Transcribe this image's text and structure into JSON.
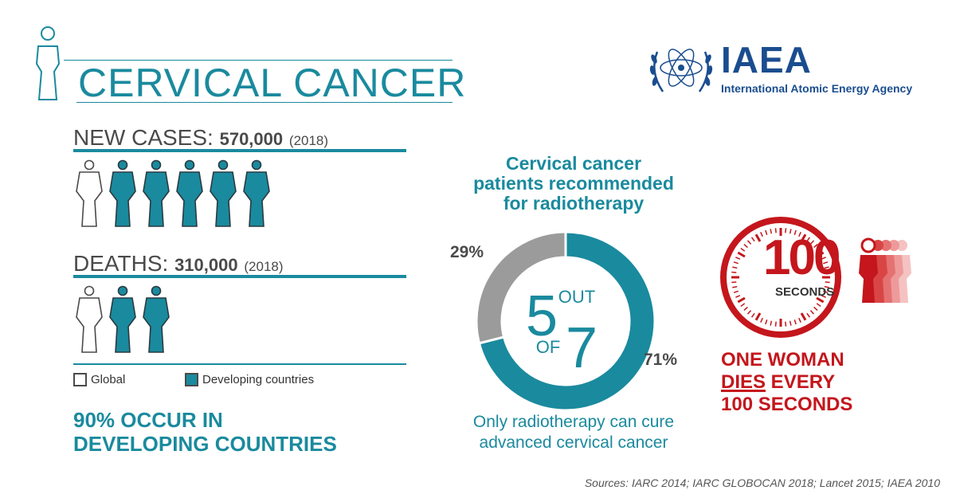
{
  "title": "CERVICAL CANCER",
  "logo": {
    "name": "IAEA",
    "subtitle": "International Atomic Energy Agency"
  },
  "new_cases": {
    "label": "NEW CASES:",
    "value": "570,000",
    "year": "(2018)",
    "global_icons": 1,
    "developing_icons": 5
  },
  "deaths": {
    "label": "DEATHS:",
    "value": "310,000",
    "year": "(2018)",
    "global_icons": 1,
    "developing_icons": 2
  },
  "legend": {
    "global": "Global",
    "developing": "Developing countries"
  },
  "highlight": {
    "line1": "90% OCCUR IN",
    "line2": "DEVELOPING COUNTRIES"
  },
  "donut": {
    "title_line1": "Cervical cancer",
    "title_line2": "patients recommended",
    "title_line3": "for radiotherapy",
    "big_num": "5",
    "out": "OUT",
    "of": "OF",
    "total": "7",
    "pct_gray": "29%",
    "pct_teal": "71%",
    "caption_line1": "Only radiotherapy can cure",
    "caption_line2": "advanced cervical cancer"
  },
  "clock": {
    "number": "100",
    "unit": "SECONDS"
  },
  "dies": {
    "line1": "ONE WOMAN",
    "dies_word": "DIES",
    "every": " EVERY",
    "line3": "100 SECONDS"
  },
  "sources": "Sources: IARC 2014; IARC GLOBOCAN 2018; Lancet 2015; IAEA 2010",
  "colors": {
    "teal": "#1a8a9e",
    "gray": "#9b9b9b",
    "red": "#c4161c",
    "navy": "#1a4d8f"
  },
  "chart_data": {
    "type": "pie",
    "categories": [
      "recommended for radiotherapy",
      "not recommended"
    ],
    "values": [
      71,
      29
    ],
    "labels": [
      "71%",
      "29%"
    ],
    "colors": [
      "#1a8a9e",
      "#9b9b9b"
    ]
  }
}
